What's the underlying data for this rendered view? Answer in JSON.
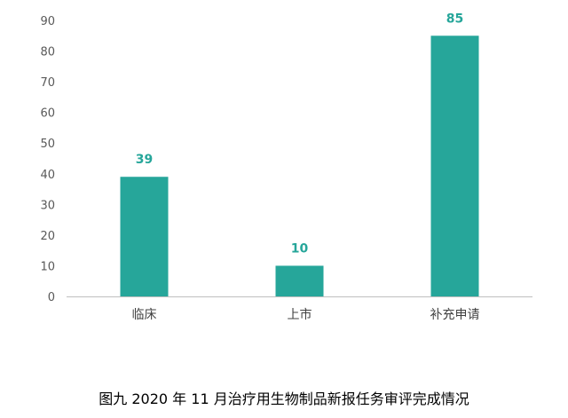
{
  "caption": "图九 2020 年 11 月治疗用生物制品新报任务审评完成情况",
  "colors": {
    "bar": "#26a69a",
    "label": "#26a69a",
    "axis": "#bfbfbf"
  },
  "chart_data": {
    "type": "bar",
    "categories": [
      "临床",
      "上市",
      "补充申请"
    ],
    "values": [
      39,
      10,
      85
    ],
    "ylim": [
      0,
      90
    ],
    "yticks": [
      0,
      10,
      20,
      30,
      40,
      50,
      60,
      70,
      80,
      90
    ],
    "grid": false,
    "legend": false
  }
}
